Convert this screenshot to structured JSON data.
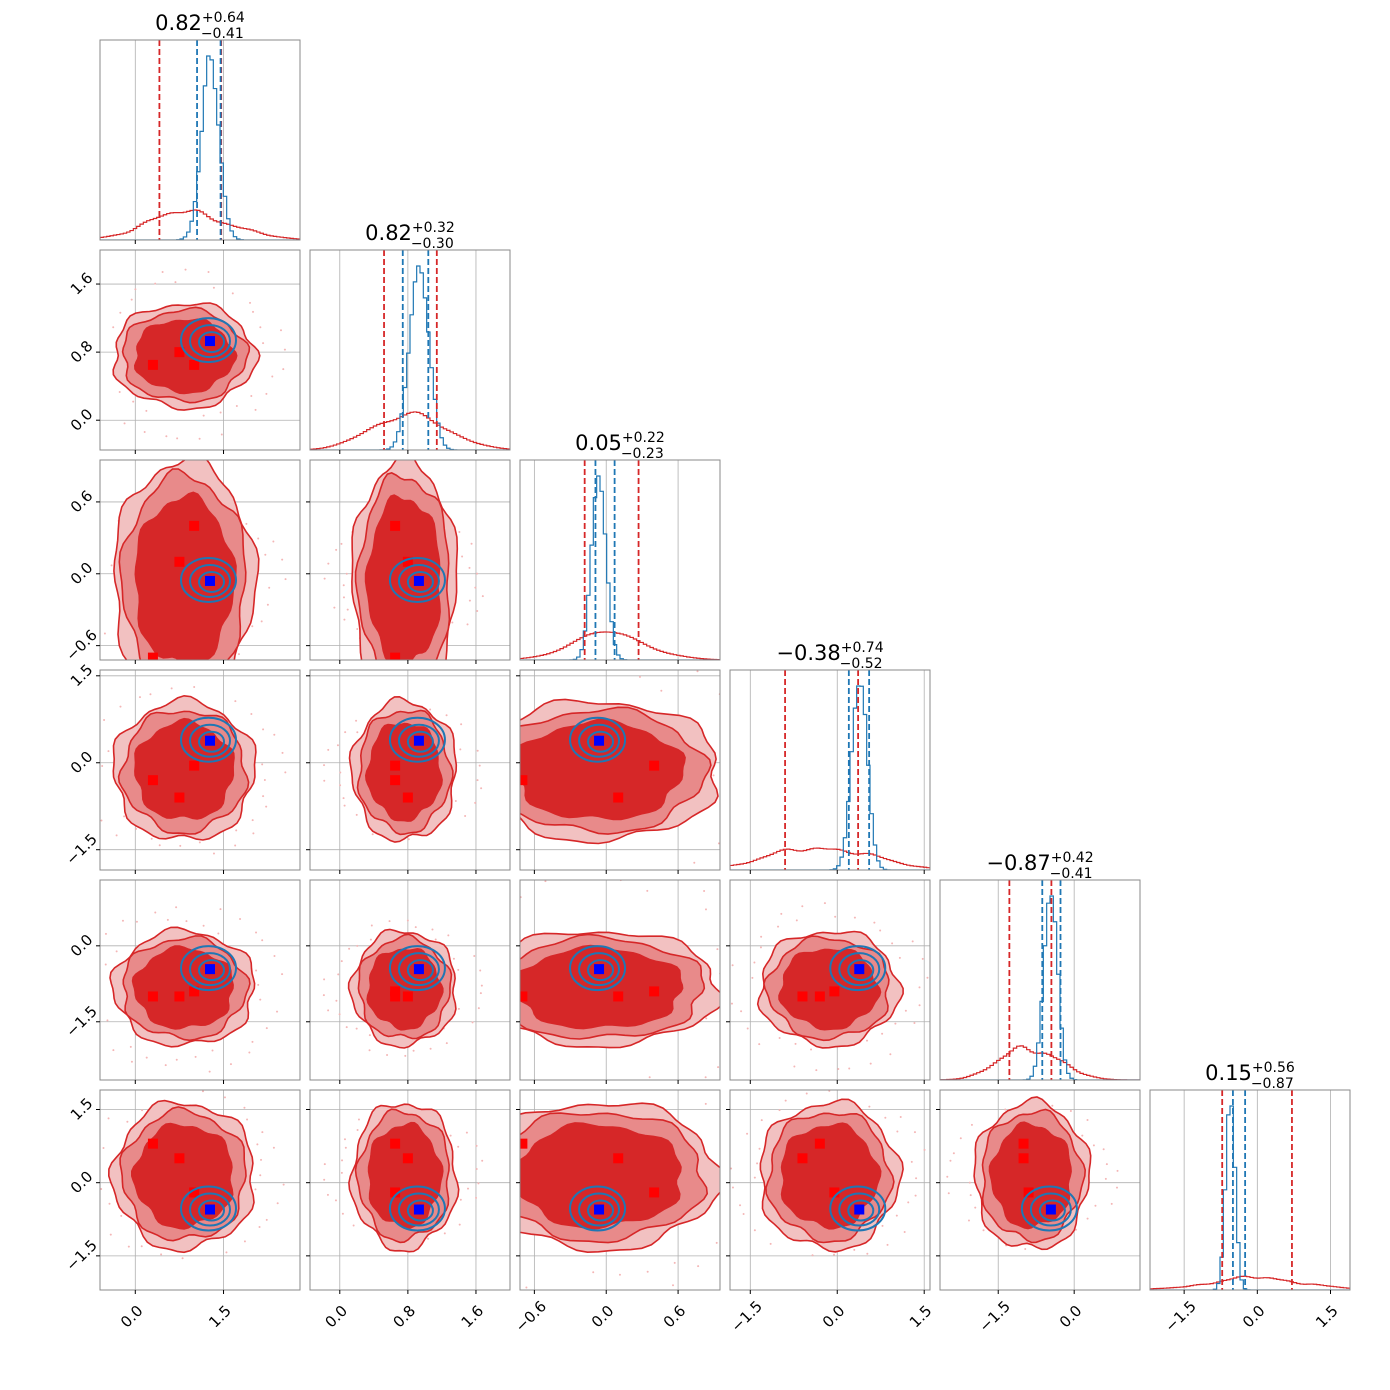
{
  "chart_data": {
    "type": "corner",
    "parameters": [
      {
        "title": {
          "median": "0.82",
          "plus": "+0.64",
          "minus": "−0.41"
        },
        "ticks": [
          "0.0",
          "1.5"
        ],
        "range": [
          -0.6,
          2.8
        ],
        "tick_values": [
          0.0,
          1.5
        ],
        "quantiles_red": [
          0.41,
          1.46
        ],
        "quantiles_blue": [
          1.05,
          1.45
        ]
      },
      {
        "title": {
          "median": "0.82",
          "plus": "+0.32",
          "minus": "−0.30"
        },
        "ticks": [
          "0.0",
          "0.8",
          "1.6"
        ],
        "range": [
          -0.35,
          2.0
        ],
        "tick_values": [
          0.0,
          0.8,
          1.6
        ],
        "quantiles_red": [
          0.52,
          1.14
        ],
        "quantiles_blue": [
          0.74,
          1.04
        ]
      },
      {
        "title": {
          "median": "0.05",
          "plus": "+0.22",
          "minus": "−0.23"
        },
        "ticks": [
          "−0.6",
          "0.0",
          "0.6"
        ],
        "range": [
          -0.72,
          0.95
        ],
        "tick_values": [
          -0.6,
          0.0,
          0.6
        ],
        "quantiles_red": [
          -0.18,
          0.27
        ],
        "quantiles_blue": [
          -0.09,
          0.07
        ]
      },
      {
        "title": {
          "median": "−0.38",
          "plus": "+0.74",
          "minus": "−0.52"
        },
        "ticks": [
          "−1.5",
          "0.0",
          "1.5"
        ],
        "range": [
          -1.85,
          1.6
        ],
        "tick_values": [
          -1.5,
          0.0,
          1.5
        ],
        "quantiles_red": [
          -0.9,
          0.36
        ],
        "quantiles_blue": [
          0.2,
          0.55
        ]
      },
      {
        "title": {
          "median": "−0.87",
          "plus": "+0.42",
          "minus": "−0.41"
        },
        "ticks": [
          "−1.5",
          "0.0"
        ],
        "range": [
          -2.65,
          1.3
        ],
        "tick_values": [
          -1.5,
          0.0
        ],
        "quantiles_red": [
          -1.28,
          -0.45
        ],
        "quantiles_blue": [
          -0.63,
          -0.27
        ]
      },
      {
        "title": {
          "median": "0.15",
          "plus": "+0.56",
          "minus": "−0.87"
        },
        "ticks": [
          "−1.5",
          "0.0",
          "1.5"
        ],
        "range": [
          -2.2,
          1.9
        ],
        "tick_values": [
          -1.5,
          0.0,
          1.5
        ],
        "quantiles_red": [
          -0.72,
          0.71
        ],
        "quantiles_blue": [
          -0.5,
          -0.25
        ]
      }
    ],
    "series": [
      {
        "color": "#d62728",
        "mode_points": [
          [
            0.3,
            0.65,
            -0.7,
            -0.3,
            -1.0,
            0.8
          ],
          [
            0.75,
            0.8,
            0.1,
            -0.6,
            -1.0,
            0.5
          ],
          [
            1.0,
            0.65,
            0.4,
            -0.05,
            -0.9,
            -0.2
          ]
        ]
      },
      {
        "color": "#1f77b4",
        "center": [
          1.27,
          0.93,
          -0.06,
          0.38,
          -0.46,
          -0.55
        ]
      }
    ],
    "truth": {
      "color": "#0000ff",
      "values": [
        1.27,
        0.93,
        -0.06,
        0.38,
        -0.46,
        -0.55
      ]
    },
    "grid": true
  }
}
